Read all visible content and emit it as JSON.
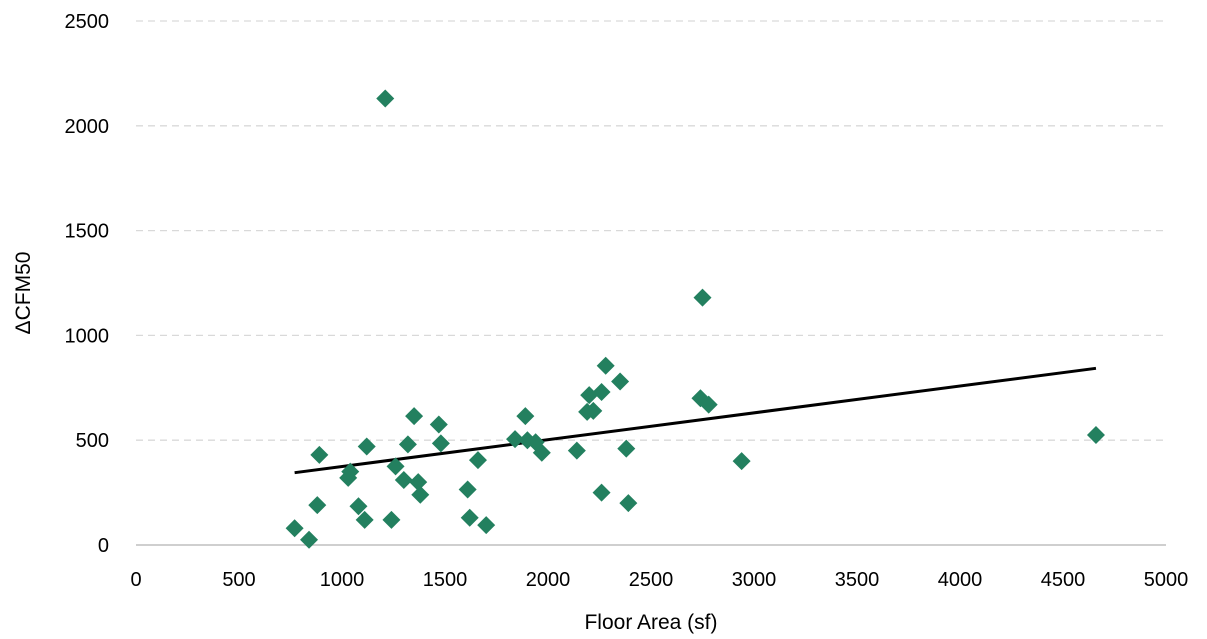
{
  "chart_data": {
    "type": "scatter",
    "title": "",
    "xlabel": "Floor Area (sf)",
    "ylabel": "ΔCFM50",
    "xlim": [
      0,
      5000
    ],
    "ylim": [
      0,
      2500
    ],
    "xticks": [
      0,
      500,
      1000,
      1500,
      2000,
      2500,
      3000,
      3500,
      4000,
      4500,
      5000
    ],
    "yticks": [
      0,
      500,
      1000,
      1500,
      2000,
      2500
    ],
    "grid": "horizontal dashed",
    "legend": "none",
    "colors": {
      "points": "#23805f",
      "trendline": "#000000",
      "grid": "#d9d9d9",
      "axis": "#bfbfbf"
    },
    "series": [
      {
        "marker": "diamond",
        "points": [
          [
            770,
            80
          ],
          [
            840,
            25
          ],
          [
            880,
            190
          ],
          [
            890,
            430
          ],
          [
            1030,
            320
          ],
          [
            1040,
            350
          ],
          [
            1080,
            185
          ],
          [
            1110,
            120
          ],
          [
            1120,
            470
          ],
          [
            1210,
            2130
          ],
          [
            1240,
            120
          ],
          [
            1260,
            375
          ],
          [
            1300,
            310
          ],
          [
            1320,
            480
          ],
          [
            1350,
            615
          ],
          [
            1370,
            300
          ],
          [
            1380,
            240
          ],
          [
            1470,
            575
          ],
          [
            1480,
            485
          ],
          [
            1610,
            265
          ],
          [
            1620,
            130
          ],
          [
            1660,
            405
          ],
          [
            1700,
            95
          ],
          [
            1840,
            505
          ],
          [
            1890,
            615
          ],
          [
            1900,
            500
          ],
          [
            1940,
            490
          ],
          [
            1970,
            440
          ],
          [
            2140,
            450
          ],
          [
            2190,
            635
          ],
          [
            2200,
            715
          ],
          [
            2220,
            640
          ],
          [
            2260,
            730
          ],
          [
            2260,
            250
          ],
          [
            2280,
            855
          ],
          [
            2350,
            780
          ],
          [
            2380,
            460
          ],
          [
            2390,
            200
          ],
          [
            2750,
            1180
          ],
          [
            2740,
            700
          ],
          [
            2780,
            670
          ],
          [
            2940,
            400
          ],
          [
            4660,
            525
          ]
        ]
      }
    ],
    "trendline": {
      "type": "linear",
      "x": [
        770,
        4660
      ],
      "y": [
        345,
        843
      ]
    }
  }
}
